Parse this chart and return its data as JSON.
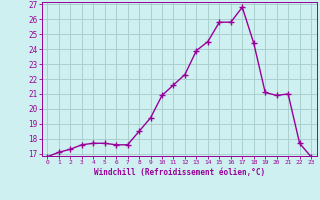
{
  "x": [
    0,
    1,
    2,
    3,
    4,
    5,
    6,
    7,
    8,
    9,
    10,
    11,
    12,
    13,
    14,
    15,
    16,
    17,
    18,
    19,
    20,
    21,
    22,
    23
  ],
  "y": [
    16.8,
    17.1,
    17.3,
    17.6,
    17.7,
    17.7,
    17.6,
    17.6,
    18.5,
    19.4,
    20.9,
    21.6,
    22.3,
    23.9,
    24.5,
    25.8,
    25.8,
    26.8,
    24.4,
    21.1,
    20.9,
    21.0,
    17.7,
    16.8
  ],
  "line_color": "#990099",
  "marker": "+",
  "marker_size": 4,
  "background_color": "#cff0f0",
  "grid_color": "#aacfcf",
  "xlabel": "Windchill (Refroidissement éolien,°C)",
  "xlabel_color": "#990099",
  "tick_color": "#990099",
  "ylim": [
    17,
    27
  ],
  "xlim": [
    -0.5,
    23.5
  ],
  "yticks": [
    17,
    18,
    19,
    20,
    21,
    22,
    23,
    24,
    25,
    26,
    27
  ],
  "xticks": [
    0,
    1,
    2,
    3,
    4,
    5,
    6,
    7,
    8,
    9,
    10,
    11,
    12,
    13,
    14,
    15,
    16,
    17,
    18,
    19,
    20,
    21,
    22,
    23
  ],
  "line_width": 1.0
}
